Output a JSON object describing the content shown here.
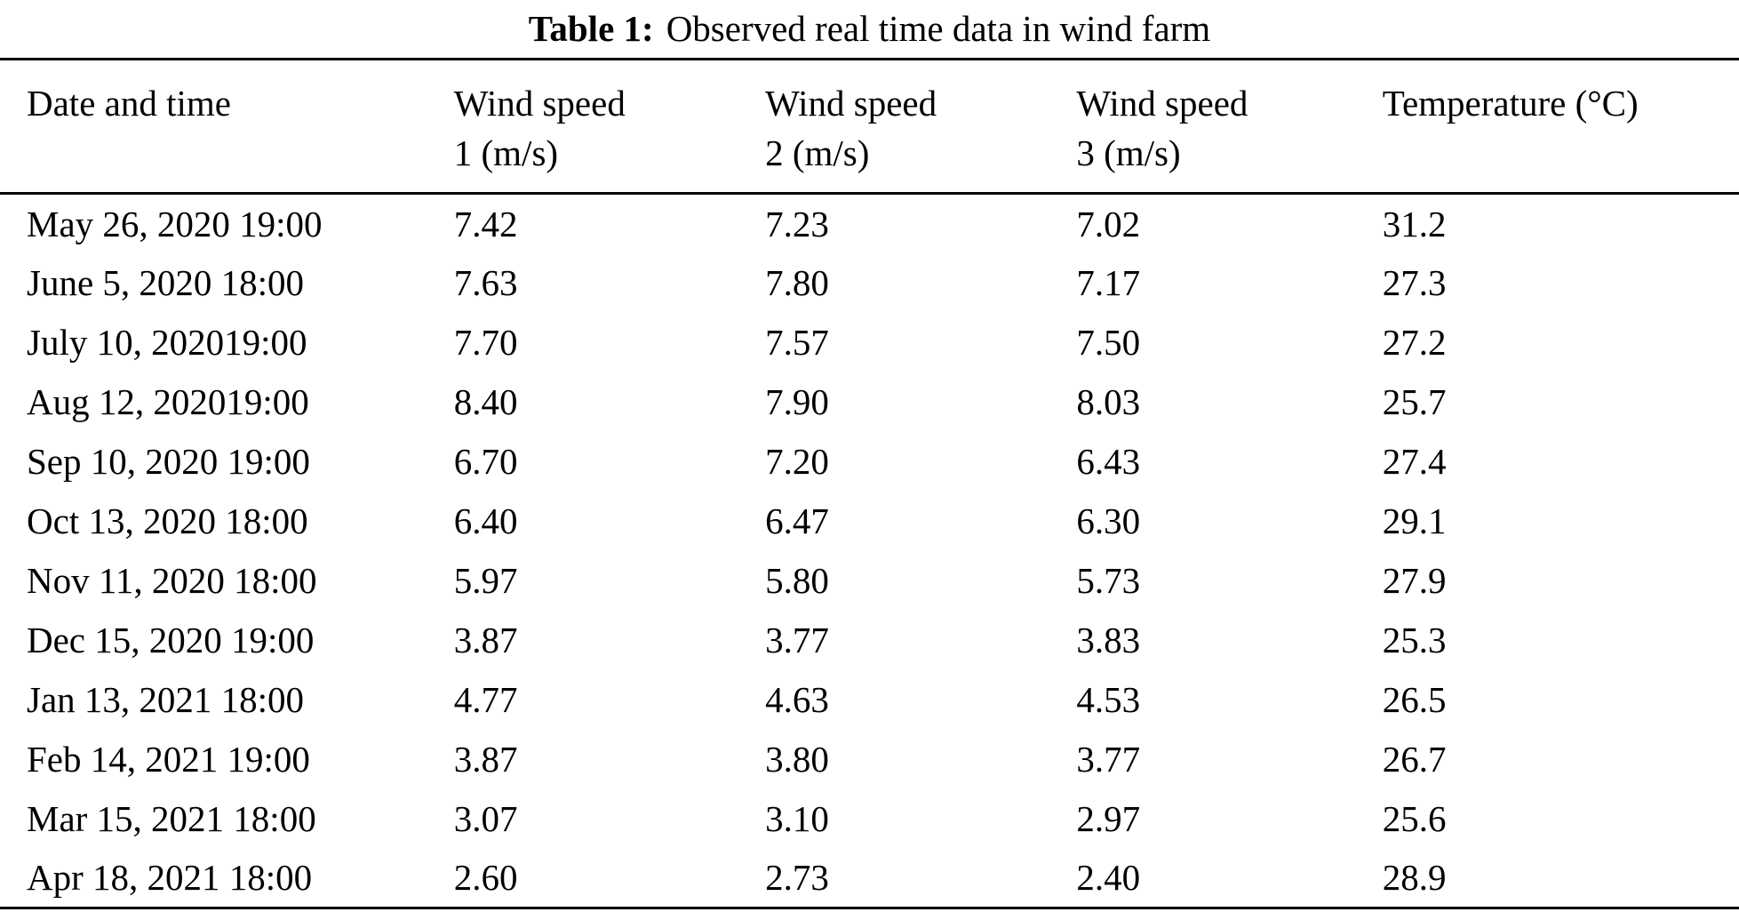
{
  "caption": {
    "label": "Table 1:",
    "text": "Observed real time data in wind farm"
  },
  "table": {
    "columns": [
      {
        "label": "Date and time"
      },
      {
        "label": "Wind speed\n1 (m/s)"
      },
      {
        "label": "Wind speed\n2 (m/s)"
      },
      {
        "label": "Wind speed\n3 (m/s)"
      },
      {
        "label": "Temperature (°C)"
      }
    ],
    "rows": [
      [
        "May 26, 2020 19:00",
        "7.42",
        "7.23",
        "7.02",
        "31.2"
      ],
      [
        "June 5, 2020 18:00",
        "7.63",
        "7.80",
        "7.17",
        "27.3"
      ],
      [
        "July 10, 202019:00",
        "7.70",
        "7.57",
        "7.50",
        "27.2"
      ],
      [
        "Aug 12, 202019:00",
        "8.40",
        "7.90",
        "8.03",
        "25.7"
      ],
      [
        "Sep 10, 2020 19:00",
        "6.70",
        "7.20",
        "6.43",
        "27.4"
      ],
      [
        "Oct 13, 2020 18:00",
        "6.40",
        "6.47",
        "6.30",
        "29.1"
      ],
      [
        "Nov 11, 2020 18:00",
        "5.97",
        "5.80",
        "5.73",
        "27.9"
      ],
      [
        "Dec 15, 2020 19:00",
        "3.87",
        "3.77",
        "3.83",
        "25.3"
      ],
      [
        "Jan 13, 2021 18:00",
        "4.77",
        "4.63",
        "4.53",
        "26.5"
      ],
      [
        "Feb 14, 2021 19:00",
        "3.87",
        "3.80",
        "3.77",
        "26.7"
      ],
      [
        "Mar 15, 2021 18:00",
        "3.07",
        "3.10",
        "2.97",
        "25.6"
      ],
      [
        "Apr 18, 2021 18:00",
        "2.60",
        "2.73",
        "2.40",
        "28.9"
      ]
    ]
  },
  "colors": {
    "background": "#ffffff",
    "text": "#000000",
    "rule": "#000000"
  }
}
